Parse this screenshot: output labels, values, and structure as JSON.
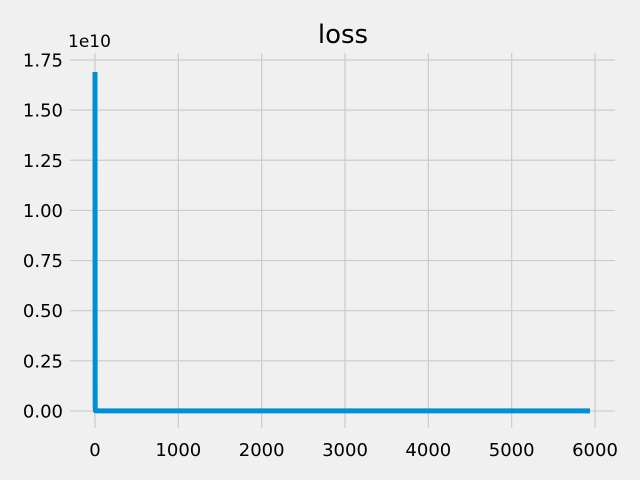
{
  "chart_data": {
    "type": "line",
    "title": "loss",
    "xlabel": "",
    "ylabel": "",
    "y_offset_label": "1e10",
    "y_scale_factor": 10000000000,
    "xlim": [
      -300,
      6240
    ],
    "ylim": [
      -0.085,
      1.785
    ],
    "x_ticks": [
      0,
      1000,
      2000,
      3000,
      4000,
      5000,
      6000
    ],
    "x_tick_labels": [
      "0",
      "1000",
      "2000",
      "3000",
      "4000",
      "5000",
      "6000"
    ],
    "y_ticks": [
      0.0,
      0.25,
      0.5,
      0.75,
      1.0,
      1.25,
      1.5,
      1.75
    ],
    "y_tick_labels": [
      "0.00",
      "0.25",
      "0.50",
      "0.75",
      "1.00",
      "1.25",
      "1.50",
      "1.75"
    ],
    "grid": true,
    "series": [
      {
        "color": "#008fd5",
        "x": [
          0,
          1,
          2,
          5,
          10,
          50,
          100,
          500,
          1000,
          2000,
          3000,
          4000,
          5000,
          5940
        ],
        "y": [
          1.69,
          0.6,
          0.02,
          0.001,
          0.0005,
          0.0003,
          0.0002,
          0.0001,
          0.0001,
          0.0001,
          0.0001,
          0.0001,
          0.0001,
          0.0001
        ]
      }
    ]
  }
}
